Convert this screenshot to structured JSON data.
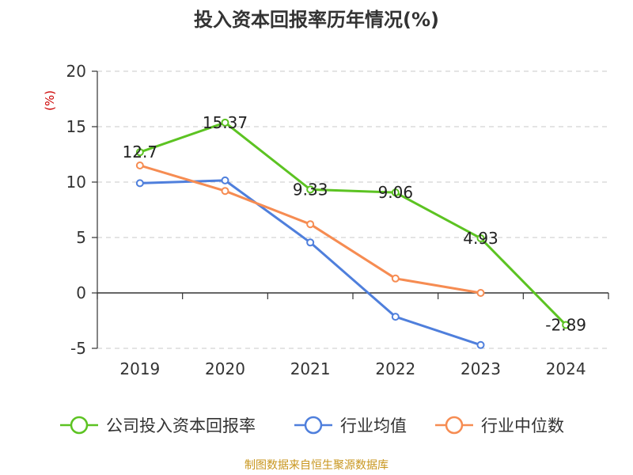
{
  "chart_data": {
    "type": "line",
    "title": "投入资本回报率历年情况(%)",
    "ylabel": "(%)",
    "categories": [
      "2019",
      "2020",
      "2021",
      "2022",
      "2023",
      "2024"
    ],
    "ylim": [
      -5,
      20
    ],
    "yticks": [
      20,
      15,
      10,
      5,
      0,
      -5
    ],
    "grid": true,
    "legend_position": "bottom",
    "series": [
      {
        "name": "公司投入资本回报率",
        "color": "#5cc322",
        "values": [
          12.7,
          15.37,
          9.33,
          9.06,
          4.93,
          -2.89
        ],
        "labels": [
          "12.7",
          "15.37",
          "9.33",
          "9.06",
          "4.93",
          "-2.89"
        ]
      },
      {
        "name": "行业均值",
        "color": "#4f7fdc",
        "values": [
          9.9,
          10.15,
          4.55,
          -2.15,
          -4.7,
          null
        ]
      },
      {
        "name": "行业中位数",
        "color": "#f68c52",
        "values": [
          11.5,
          9.2,
          6.2,
          1.3,
          0.0,
          null
        ]
      }
    ]
  },
  "footer": {
    "source": "制图数据来自恒生聚源数据库"
  }
}
